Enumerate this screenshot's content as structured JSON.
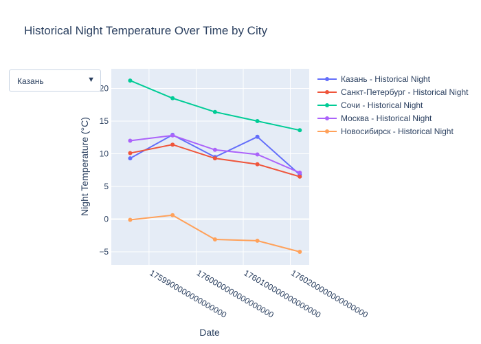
{
  "dropdown": {
    "selected": "Казань",
    "arrow_icon": "triangle-down-icon"
  },
  "chart_data": {
    "type": "line",
    "title": "Historical Night Temperature Over Time by City",
    "xlabel": "Date",
    "ylabel": "Night Temperature (°C)",
    "x": [
      1759860000000000000,
      1759950000000000000,
      1760040000000000000,
      1760130000000000000,
      1760220000000000000
    ],
    "xlim": [
      1759820000000000000,
      1760240000000000000
    ],
    "ylim": [
      -7,
      23
    ],
    "xticks": [
      1759900000000000000,
      1760000000000000000,
      1760100000000000000,
      1760200000000000000
    ],
    "xtick_labels": [
      "1759900000000000000",
      "1760000000000000000",
      "1760100000000000000",
      "1760200000000000000"
    ],
    "yticks": [
      -5,
      0,
      5,
      10,
      15,
      20
    ],
    "ytick_labels": [
      "−5",
      "0",
      "5",
      "10",
      "15",
      "20"
    ],
    "grid": true,
    "legend_position": "right",
    "plot_background": "#e5ecf6",
    "series": [
      {
        "name": "Казань - Historical Night",
        "color": "#636efa",
        "values": [
          9.3,
          12.9,
          9.5,
          12.6,
          6.8
        ]
      },
      {
        "name": "Санкт-Петербург - Historical Night",
        "color": "#ef553b",
        "values": [
          10.1,
          11.4,
          9.3,
          8.4,
          6.5
        ]
      },
      {
        "name": "Сочи - Historical Night",
        "color": "#00cc96",
        "values": [
          21.2,
          18.5,
          16.4,
          15.0,
          13.6
        ]
      },
      {
        "name": "Москва - Historical Night",
        "color": "#ab63fa",
        "values": [
          12.0,
          12.8,
          10.6,
          9.9,
          7.1
        ]
      },
      {
        "name": "Новосибирск - Historical Night",
        "color": "#ffa15a",
        "values": [
          -0.1,
          0.6,
          -3.1,
          -3.3,
          -5.0
        ]
      }
    ]
  }
}
